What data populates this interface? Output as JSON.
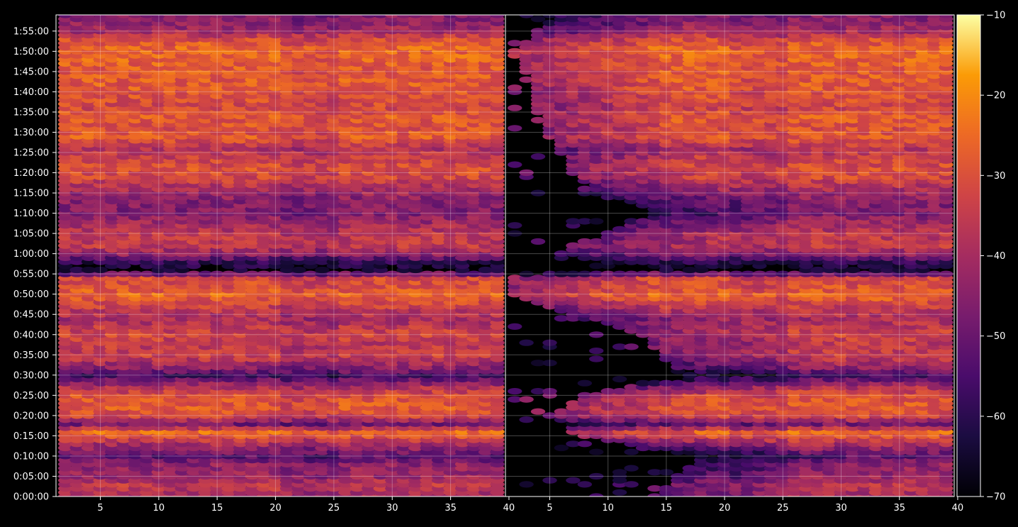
{
  "chart_data": {
    "type": "heatmap",
    "title": "",
    "xlabel": "",
    "ylabel": "",
    "panels": [
      {
        "name": "",
        "xlim": [
          1.2,
          39.7
        ],
        "x_ticks": [
          5,
          10,
          15,
          20,
          25,
          30,
          35,
          40
        ],
        "x_tick_labels": [
          "5",
          "10",
          "15",
          "20",
          "25",
          "30",
          "35",
          "40"
        ]
      },
      {
        "name": "",
        "xlim": [
          1.2,
          39.7
        ],
        "x_ticks": [
          5,
          10,
          15,
          20,
          25,
          30,
          35,
          40
        ],
        "x_tick_labels": [
          "5",
          "10",
          "15",
          "20",
          "25",
          "30",
          "35",
          "40"
        ]
      }
    ],
    "x_columns": [
      2,
      3,
      4,
      5,
      6,
      7,
      8,
      9,
      10,
      11,
      12,
      13,
      14,
      15,
      16,
      17,
      18,
      19,
      20,
      21,
      22,
      23,
      24,
      25,
      26,
      27,
      28,
      29,
      30,
      31,
      32,
      33,
      34,
      35,
      36,
      37,
      38,
      39
    ],
    "ylim_seconds": [
      0,
      7140
    ],
    "y_ticks_seconds": [
      0,
      300,
      600,
      900,
      1200,
      1500,
      1800,
      2100,
      2400,
      2700,
      3000,
      3300,
      3600,
      3900,
      4200,
      4500,
      4800,
      5100,
      5400,
      5700,
      6000,
      6300,
      6600,
      6900
    ],
    "y_tick_labels": [
      "0:00:00",
      "0:05:00",
      "0:10:00",
      "0:15:00",
      "0:20:00",
      "0:25:00",
      "0:30:00",
      "0:35:00",
      "0:40:00",
      "0:45:00",
      "0:50:00",
      "0:55:00",
      "1:00:00",
      "1:05:00",
      "1:10:00",
      "1:15:00",
      "1:20:00",
      "1:25:00",
      "1:30:00",
      "1:35:00",
      "1:40:00",
      "1:45:00",
      "1:50:00",
      "1:55:00"
    ],
    "row_spacing_seconds": 60,
    "row_level_profile": [
      {
        "t": 0,
        "v": -40
      },
      {
        "t": 180,
        "v": -36
      },
      {
        "t": 300,
        "v": -42
      },
      {
        "t": 480,
        "v": -44
      },
      {
        "t": 600,
        "v": -52
      },
      {
        "t": 780,
        "v": -40
      },
      {
        "t": 960,
        "v": -25
      },
      {
        "t": 1080,
        "v": -48
      },
      {
        "t": 1200,
        "v": -32
      },
      {
        "t": 1320,
        "v": -28
      },
      {
        "t": 1500,
        "v": -30
      },
      {
        "t": 1620,
        "v": -38
      },
      {
        "t": 1800,
        "v": -56
      },
      {
        "t": 1920,
        "v": -44
      },
      {
        "t": 2100,
        "v": -34
      },
      {
        "t": 2280,
        "v": -36
      },
      {
        "t": 2400,
        "v": -32
      },
      {
        "t": 2520,
        "v": -36
      },
      {
        "t": 2640,
        "v": -40
      },
      {
        "t": 2820,
        "v": -34
      },
      {
        "t": 3000,
        "v": -26
      },
      {
        "t": 3120,
        "v": -30
      },
      {
        "t": 3240,
        "v": -32
      },
      {
        "t": 3360,
        "v": -66
      },
      {
        "t": 3480,
        "v": -60
      },
      {
        "t": 3600,
        "v": -44
      },
      {
        "t": 3720,
        "v": -36
      },
      {
        "t": 3900,
        "v": -36
      },
      {
        "t": 4020,
        "v": -40
      },
      {
        "t": 4200,
        "v": -46
      },
      {
        "t": 4380,
        "v": -46
      },
      {
        "t": 4560,
        "v": -40
      },
      {
        "t": 4740,
        "v": -32
      },
      {
        "t": 4860,
        "v": -30
      },
      {
        "t": 5040,
        "v": -34
      },
      {
        "t": 5160,
        "v": -38
      },
      {
        "t": 5340,
        "v": -28
      },
      {
        "t": 5460,
        "v": -30
      },
      {
        "t": 5640,
        "v": -28
      },
      {
        "t": 5760,
        "v": -32
      },
      {
        "t": 5940,
        "v": -30
      },
      {
        "t": 6060,
        "v": -28
      },
      {
        "t": 6240,
        "v": -28
      },
      {
        "t": 6360,
        "v": -28
      },
      {
        "t": 6540,
        "v": -26
      },
      {
        "t": 6660,
        "v": -26
      },
      {
        "t": 6780,
        "v": -30
      },
      {
        "t": 6900,
        "v": -40
      },
      {
        "t": 7020,
        "v": -44
      },
      {
        "t": 7140,
        "v": -46
      }
    ],
    "right_panel_sparse_start_x": [
      {
        "t": 0,
        "x": 14
      },
      {
        "t": 600,
        "x": 18
      },
      {
        "t": 900,
        "x": 8
      },
      {
        "t": 1200,
        "x": 5
      },
      {
        "t": 1500,
        "x": 8
      },
      {
        "t": 1800,
        "x": 16
      },
      {
        "t": 2400,
        "x": 13
      },
      {
        "t": 2700,
        "x": 7
      },
      {
        "t": 3000,
        "x": 1
      },
      {
        "t": 3300,
        "x": 2
      },
      {
        "t": 3600,
        "x": 6
      },
      {
        "t": 3900,
        "x": 10
      },
      {
        "t": 4200,
        "x": 14
      },
      {
        "t": 4500,
        "x": 10
      },
      {
        "t": 4800,
        "x": 7
      },
      {
        "t": 5100,
        "x": 6
      },
      {
        "t": 5400,
        "x": 5
      },
      {
        "t": 5700,
        "x": 4
      },
      {
        "t": 6000,
        "x": 4
      },
      {
        "t": 6300,
        "x": 3
      },
      {
        "t": 6600,
        "x": 2
      },
      {
        "t": 6900,
        "x": 4
      },
      {
        "t": 7140,
        "x": 6
      }
    ],
    "right_panel_attenuation_db": 14,
    "colorbar": {
      "range": [
        -70,
        -10
      ],
      "ticks": [
        -70,
        -60,
        -50,
        -40,
        -30,
        -20,
        -10
      ],
      "tick_labels": [
        "−70",
        "−60",
        "−50",
        "−40",
        "−30",
        "−20",
        "−10"
      ],
      "colormap": "inferno"
    },
    "grid": true,
    "colors": {
      "background": "#000000",
      "axis_frame": "#ffffff",
      "grid": "#ffffff",
      "tick_text": "#ffffff"
    }
  }
}
